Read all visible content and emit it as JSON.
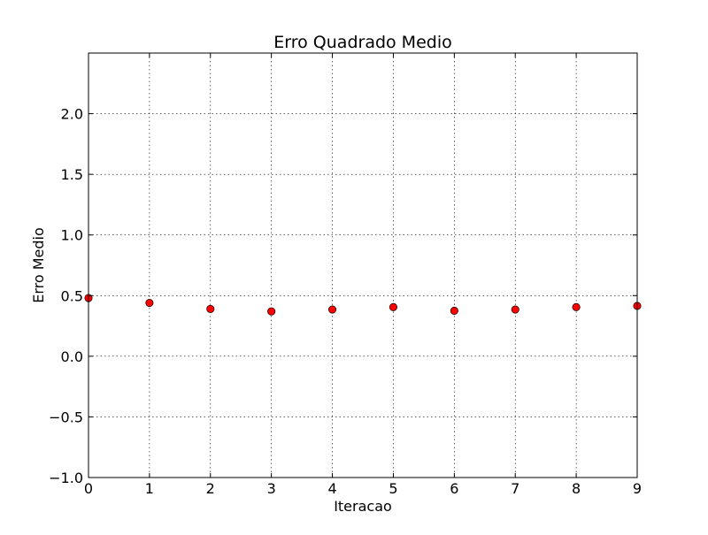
{
  "chart_data": {
    "type": "scatter",
    "title": "Erro Quadrado Medio",
    "xlabel": "Iteracao",
    "ylabel": "Erro Medio",
    "xlim": [
      0,
      9
    ],
    "ylim": [
      -1.0,
      2.5
    ],
    "x_ticks": [
      "0",
      "1",
      "2",
      "3",
      "4",
      "5",
      "6",
      "7",
      "8",
      "9"
    ],
    "x_tick_values": [
      0,
      1,
      2,
      3,
      4,
      5,
      6,
      7,
      8,
      9
    ],
    "y_ticks": [
      "−1.0",
      "−0.5",
      "0.0",
      "0.5",
      "1.0",
      "1.5",
      "2.0"
    ],
    "y_tick_values": [
      -1.0,
      -0.5,
      0.0,
      0.5,
      1.0,
      1.5,
      2.0
    ],
    "grid": true,
    "marker_color": "#ff0000",
    "marker_edge_color": "#000000",
    "points": [
      {
        "x": 0,
        "y": 0.48
      },
      {
        "x": 1,
        "y": 0.44
      },
      {
        "x": 2,
        "y": 0.39
      },
      {
        "x": 3,
        "y": 0.37
      },
      {
        "x": 4,
        "y": 0.385
      },
      {
        "x": 5,
        "y": 0.405
      },
      {
        "x": 6,
        "y": 0.375
      },
      {
        "x": 7,
        "y": 0.385
      },
      {
        "x": 8,
        "y": 0.405
      },
      {
        "x": 9,
        "y": 0.415
      }
    ]
  }
}
